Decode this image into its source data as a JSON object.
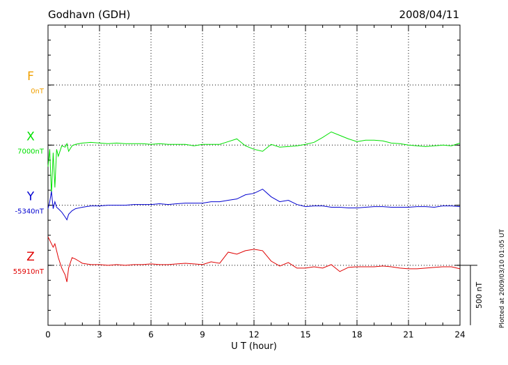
{
  "chart_data": {
    "type": "magnetogram",
    "title": "Godhavn (GDH)",
    "date": "2008/04/11",
    "x_label": "U T (hour)",
    "plotted_note": "Plotted at 2009/03/10 01:05 UT",
    "xlim": [
      0,
      24
    ],
    "xticks": [
      0,
      3,
      6,
      9,
      12,
      15,
      18,
      21,
      24
    ],
    "grid": true,
    "scale_bar": {
      "value": 500,
      "label": "500 nT"
    },
    "x": [
      0,
      0.1,
      0.2,
      0.3,
      0.4,
      0.5,
      0.6,
      0.8,
      1,
      1.1,
      1.2,
      1.4,
      1.6,
      1.8,
      2,
      2.5,
      3,
      3.5,
      4,
      4.5,
      5,
      5.5,
      6,
      6.5,
      7,
      7.5,
      8,
      8.5,
      9,
      9.5,
      10,
      10.5,
      11,
      11.5,
      12,
      12.5,
      13,
      13.5,
      14,
      14.5,
      15,
      15.5,
      16,
      16.5,
      17,
      17.5,
      18,
      18.5,
      19,
      19.5,
      20,
      20.5,
      21,
      21.5,
      22,
      22.5,
      23,
      23.5,
      24
    ],
    "series": [
      {
        "name": "F",
        "color": "#f0a000",
        "baseline": {
          "value": 0,
          "label": "0nT"
        }
      },
      {
        "name": "X",
        "color": "#00e000",
        "baseline": {
          "value": 7000,
          "label": "7000nT"
        },
        "values": [
          6820,
          6965,
          6587,
          6936,
          6646,
          6965,
          6907,
          6994,
          6983,
          7012,
          6948,
          6994,
          7006,
          7012,
          7017,
          7023,
          7017,
          7012,
          7017,
          7012,
          7012,
          7012,
          7006,
          7012,
          7006,
          7006,
          7006,
          6994,
          7006,
          7006,
          7006,
          7029,
          7052,
          6994,
          6965,
          6948,
          7006,
          6983,
          6988,
          6994,
          7006,
          7023,
          7064,
          7110,
          7081,
          7052,
          7029,
          7041,
          7041,
          7035,
          7017,
          7012,
          7000,
          6994,
          6988,
          6994,
          7000,
          6994,
          7017
        ]
      },
      {
        "name": "Y",
        "color": "#0000d0",
        "baseline": {
          "value": -5340,
          "label": "-5340nT"
        },
        "values": [
          -5369,
          -5311,
          -5224,
          -5369,
          -5311,
          -5357,
          -5369,
          -5398,
          -5439,
          -5462,
          -5416,
          -5386,
          -5369,
          -5363,
          -5357,
          -5346,
          -5346,
          -5340,
          -5340,
          -5340,
          -5334,
          -5334,
          -5334,
          -5328,
          -5334,
          -5328,
          -5323,
          -5323,
          -5323,
          -5311,
          -5311,
          -5299,
          -5288,
          -5253,
          -5241,
          -5206,
          -5270,
          -5311,
          -5299,
          -5334,
          -5352,
          -5346,
          -5346,
          -5357,
          -5357,
          -5363,
          -5363,
          -5357,
          -5352,
          -5352,
          -5357,
          -5357,
          -5357,
          -5352,
          -5352,
          -5357,
          -5346,
          -5346,
          -5352
        ]
      },
      {
        "name": "Z",
        "color": "#e00000",
        "baseline": {
          "value": 55910,
          "label": "55910nT"
        },
        "values": [
          56148,
          56119,
          56090,
          56061,
          56090,
          56032,
          55974,
          55887,
          55829,
          55771,
          55887,
          55974,
          55962,
          55945,
          55927,
          55916,
          55916,
          55910,
          55916,
          55910,
          55916,
          55916,
          55922,
          55916,
          55916,
          55922,
          55927,
          55922,
          55916,
          55939,
          55927,
          56020,
          56003,
          56032,
          56044,
          56032,
          55945,
          55904,
          55933,
          55887,
          55887,
          55898,
          55887,
          55916,
          55858,
          55893,
          55898,
          55898,
          55898,
          55904,
          55898,
          55887,
          55881,
          55881,
          55887,
          55893,
          55898,
          55898,
          55881
        ]
      }
    ]
  }
}
